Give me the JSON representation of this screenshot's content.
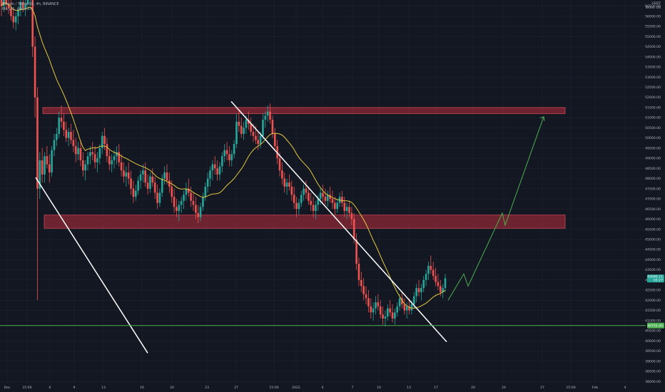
{
  "header": {
    "line1": "Bitcoin / TetherUS, 4h, BINANCE",
    "line2": "MA (21, close, 0)"
  },
  "currency": {
    "code": "USDT",
    "label": "Tether US"
  },
  "colors": {
    "background": "#131722",
    "grid": "#1f2331",
    "up": "#26a69a",
    "down": "#ef5350",
    "ma": "#e2c93f",
    "zone_fill": "#8e2a36",
    "zone_border": "#e04b5a",
    "trendline": "#ffffff",
    "projection": "#4caf50",
    "support": "#4caf50",
    "price_badge": "#26a69a",
    "support_badge": "#4caf50"
  },
  "chart_data": {
    "type": "candlestick",
    "symbol": "Bitcoin / TetherUS",
    "interval": "4h",
    "exchange": "BINANCE",
    "y_ticks": [
      "56500.00",
      "56000.00",
      "55500.00",
      "55000.00",
      "54500.00",
      "54000.00",
      "53500.00",
      "53000.00",
      "52500.00",
      "52000.00",
      "51500.00",
      "51000.00",
      "50500.00",
      "50000.00",
      "49500.00",
      "49000.00",
      "48500.00",
      "48000.00",
      "47500.00",
      "47000.00",
      "46500.00",
      "46000.00",
      "45500.00",
      "45000.00",
      "44500.00",
      "44000.00",
      "43500.00",
      "43000.00",
      "42500.00",
      "42000.00",
      "41500.00",
      "41000.00",
      "40500.00",
      "40000.00",
      "39500.00",
      "39000.00",
      "38500.00",
      "38000.00"
    ],
    "x_ticks": [
      "Dec",
      "15:00",
      "6",
      "9",
      "13",
      "16",
      "20",
      "23",
      "27",
      "15:00",
      "2022",
      "4",
      "7",
      "10",
      "13",
      "17",
      "20",
      "24",
      "27",
      "15:00",
      "Feb",
      "4"
    ],
    "ylim": [
      37900,
      56800
    ],
    "last_price": "43090.21",
    "last_price_sub": "03:27",
    "support_level": "40755.40",
    "zones": [
      {
        "name": "resistance zone",
        "low": 51200,
        "high": 51500
      },
      {
        "name": "support zone",
        "low": 45550,
        "high": 46200
      }
    ],
    "trendline_upper": {
      "from": {
        "x": "27",
        "y": 51800
      },
      "to": {
        "x": "17",
        "y": 39950
      }
    },
    "trendline_lower": {
      "from": {
        "x": "6",
        "y": 48050
      },
      "to": {
        "x": "13",
        "y": 39400
      }
    },
    "projection": [
      {
        "x": "13",
        "y": 42000
      },
      {
        "x": "17",
        "y": 43300
      },
      {
        "x": "17",
        "y": 42700
      },
      {
        "x": "20",
        "y": 46300
      },
      {
        "x": "20",
        "y": 45700
      },
      {
        "x": "24",
        "y": 51050
      }
    ],
    "candles": [
      [
        57000,
        57300,
        56000,
        56500
      ],
      [
        56500,
        57000,
        56200,
        56800
      ],
      [
        56800,
        57200,
        56300,
        56600
      ],
      [
        56600,
        57000,
        56100,
        56400
      ],
      [
        56400,
        56800,
        55800,
        56000
      ],
      [
        56000,
        56400,
        55400,
        55700
      ],
      [
        55700,
        56200,
        55300,
        56000
      ],
      [
        56000,
        56500,
        55600,
        56300
      ],
      [
        56300,
        56900,
        56000,
        56700
      ],
      [
        56700,
        57000,
        56200,
        56400
      ],
      [
        56400,
        56900,
        56000,
        56600
      ],
      [
        56600,
        57100,
        56300,
        56900
      ],
      [
        56900,
        57300,
        56500,
        57000
      ],
      [
        57000,
        57200,
        54000,
        54500
      ],
      [
        54500,
        55000,
        51000,
        52000
      ],
      [
        52000,
        52500,
        42000,
        47500
      ],
      [
        47500,
        49300,
        47000,
        48900
      ],
      [
        48900,
        49500,
        47800,
        48200
      ],
      [
        48200,
        49300,
        47800,
        49100
      ],
      [
        49100,
        49600,
        48500,
        48700
      ],
      [
        48700,
        49200,
        47800,
        48300
      ],
      [
        48300,
        49600,
        48100,
        49400
      ],
      [
        49400,
        50200,
        49100,
        49900
      ],
      [
        49900,
        50500,
        49600,
        50200
      ],
      [
        50200,
        51300,
        50000,
        51000
      ],
      [
        51000,
        51600,
        50500,
        50800
      ],
      [
        50800,
        51200,
        50100,
        50400
      ],
      [
        50400,
        50800,
        49800,
        50000
      ],
      [
        50000,
        50500,
        49600,
        50300
      ],
      [
        50300,
        50700,
        49700,
        49900
      ],
      [
        49900,
        50400,
        49300,
        49600
      ],
      [
        49600,
        50000,
        48800,
        49200
      ],
      [
        49200,
        49800,
        48900,
        49500
      ],
      [
        49500,
        49900,
        48600,
        48900
      ],
      [
        48900,
        49300,
        48100,
        48400
      ],
      [
        48400,
        48900,
        47900,
        48700
      ],
      [
        48700,
        49300,
        48400,
        49100
      ],
      [
        49100,
        49600,
        48700,
        49300
      ],
      [
        49300,
        49800,
        48900,
        49200
      ],
      [
        49200,
        49600,
        48500,
        48800
      ],
      [
        48800,
        49300,
        48300,
        49000
      ],
      [
        49000,
        49700,
        48700,
        49500
      ],
      [
        49500,
        50300,
        49200,
        50100
      ],
      [
        50100,
        50500,
        49400,
        49700
      ],
      [
        49700,
        50000,
        48800,
        49100
      ],
      [
        49100,
        49400,
        48400,
        48700
      ],
      [
        48700,
        49200,
        48300,
        48900
      ],
      [
        48900,
        49400,
        48500,
        49100
      ],
      [
        49100,
        49600,
        48700,
        49300
      ],
      [
        49300,
        49700,
        48600,
        48800
      ],
      [
        48800,
        49200,
        48100,
        48400
      ],
      [
        48400,
        48800,
        47800,
        48100
      ],
      [
        48100,
        48600,
        47600,
        48300
      ],
      [
        48300,
        48800,
        47700,
        48000
      ],
      [
        48000,
        48400,
        47200,
        47500
      ],
      [
        47500,
        47900,
        46800,
        47100
      ],
      [
        47100,
        47700,
        46900,
        47400
      ],
      [
        47400,
        48100,
        47200,
        47900
      ],
      [
        47900,
        48400,
        47500,
        48200
      ],
      [
        48200,
        48700,
        47800,
        48400
      ],
      [
        48400,
        48800,
        47600,
        47800
      ],
      [
        47800,
        48200,
        47200,
        47500
      ],
      [
        47500,
        48300,
        47300,
        48100
      ],
      [
        48100,
        48500,
        47600,
        47800
      ],
      [
        47800,
        48100,
        47000,
        47300
      ],
      [
        47300,
        47700,
        46500,
        46800
      ],
      [
        46800,
        47500,
        46600,
        47300
      ],
      [
        47300,
        48200,
        47100,
        48000
      ],
      [
        48000,
        48600,
        47700,
        48300
      ],
      [
        48300,
        48700,
        47700,
        47900
      ],
      [
        47900,
        48300,
        47300,
        47600
      ],
      [
        47600,
        47900,
        46800,
        47100
      ],
      [
        47100,
        47500,
        46300,
        46600
      ],
      [
        46600,
        47000,
        46100,
        46400
      ],
      [
        46400,
        46900,
        45900,
        46700
      ],
      [
        46700,
        47100,
        46300,
        46900
      ],
      [
        46900,
        47400,
        46500,
        47200
      ],
      [
        47200,
        47800,
        46900,
        47500
      ],
      [
        47500,
        48000,
        47100,
        47300
      ],
      [
        47300,
        47600,
        46600,
        46900
      ],
      [
        46900,
        47300,
        46400,
        46700
      ],
      [
        46700,
        47100,
        46000,
        46300
      ],
      [
        46300,
        46700,
        45800,
        46100
      ],
      [
        46100,
        46800,
        45900,
        46600
      ],
      [
        46600,
        47300,
        46400,
        47100
      ],
      [
        47100,
        47800,
        46900,
        47600
      ],
      [
        47600,
        48300,
        47300,
        48000
      ],
      [
        48000,
        48600,
        47600,
        48400
      ],
      [
        48400,
        48900,
        47900,
        48700
      ],
      [
        48700,
        49100,
        48200,
        48500
      ],
      [
        48500,
        48900,
        47900,
        48200
      ],
      [
        48200,
        48800,
        47900,
        48600
      ],
      [
        48600,
        49300,
        48300,
        49100
      ],
      [
        49100,
        49700,
        48800,
        49400
      ],
      [
        49400,
        49800,
        48900,
        49200
      ],
      [
        49200,
        49600,
        48600,
        48900
      ],
      [
        48900,
        49400,
        48600,
        49200
      ],
      [
        49200,
        49900,
        49000,
        49700
      ],
      [
        49700,
        51200,
        49500,
        50800
      ],
      [
        50800,
        51400,
        50300,
        50600
      ],
      [
        50600,
        51000,
        50000,
        50200
      ],
      [
        50200,
        50800,
        49900,
        50500
      ],
      [
        50500,
        51100,
        50200,
        50900
      ],
      [
        50900,
        51300,
        50400,
        50700
      ],
      [
        50700,
        51000,
        50100,
        50300
      ],
      [
        50300,
        50700,
        49800,
        50100
      ],
      [
        50100,
        50600,
        49700,
        49900
      ],
      [
        49900,
        50300,
        49400,
        49700
      ],
      [
        49700,
        50300,
        49500,
        50100
      ],
      [
        50100,
        51200,
        49900,
        50900
      ],
      [
        50900,
        51300,
        50500,
        51100
      ],
      [
        51100,
        51600,
        50800,
        51300
      ],
      [
        51300,
        51700,
        50700,
        50900
      ],
      [
        50900,
        51100,
        50000,
        50200
      ],
      [
        50200,
        50500,
        49400,
        49600
      ],
      [
        49600,
        49900,
        48700,
        49000
      ],
      [
        49000,
        49300,
        48100,
        48400
      ],
      [
        48400,
        48800,
        47700,
        48000
      ],
      [
        48000,
        48300,
        47300,
        47600
      ],
      [
        47600,
        48000,
        47200,
        47800
      ],
      [
        47800,
        48200,
        47400,
        47600
      ],
      [
        47600,
        47900,
        46900,
        47200
      ],
      [
        47200,
        47600,
        46500,
        46800
      ],
      [
        46800,
        47100,
        46100,
        46500
      ],
      [
        46500,
        47000,
        46200,
        46800
      ],
      [
        46800,
        47400,
        46600,
        47200
      ],
      [
        47200,
        47700,
        46900,
        47500
      ],
      [
        47500,
        47900,
        47000,
        47300
      ],
      [
        47300,
        47600,
        46700,
        46900
      ],
      [
        46900,
        47300,
        46400,
        46700
      ],
      [
        46700,
        47100,
        46100,
        46400
      ],
      [
        46400,
        46900,
        46000,
        46700
      ],
      [
        46700,
        47200,
        46400,
        47000
      ],
      [
        47000,
        47500,
        46700,
        47300
      ],
      [
        47300,
        47700,
        46800,
        47100
      ],
      [
        47100,
        47500,
        46700,
        46900
      ],
      [
        46900,
        47400,
        46600,
        47200
      ],
      [
        47200,
        47600,
        46800,
        47000
      ],
      [
        47000,
        47400,
        46500,
        46800
      ],
      [
        46800,
        47100,
        46200,
        46500
      ],
      [
        46500,
        47000,
        46300,
        46800
      ],
      [
        46800,
        47300,
        46600,
        47100
      ],
      [
        47100,
        47400,
        46600,
        46800
      ],
      [
        46800,
        47100,
        46100,
        46400
      ],
      [
        46400,
        46800,
        46000,
        46600
      ],
      [
        46600,
        46900,
        46100,
        46300
      ],
      [
        46300,
        46600,
        45700,
        46000
      ],
      [
        46000,
        46300,
        44800,
        45000
      ],
      [
        45000,
        45300,
        43500,
        43800
      ],
      [
        43800,
        44100,
        42700,
        43000
      ],
      [
        43000,
        43400,
        42400,
        42700
      ],
      [
        42700,
        43100,
        42000,
        42300
      ],
      [
        42300,
        42700,
        41800,
        42100
      ],
      [
        42100,
        42500,
        41400,
        41700
      ],
      [
        41700,
        42100,
        41100,
        41400
      ],
      [
        41400,
        41900,
        41000,
        41600
      ],
      [
        41600,
        42200,
        41300,
        41900
      ],
      [
        41900,
        42300,
        41500,
        41700
      ],
      [
        41700,
        42000,
        41100,
        41300
      ],
      [
        41300,
        41700,
        40800,
        41100
      ],
      [
        41100,
        41500,
        40700,
        41200
      ],
      [
        41200,
        41800,
        41000,
        41600
      ],
      [
        41600,
        42000,
        41200,
        41400
      ],
      [
        41400,
        41800,
        40900,
        41100
      ],
      [
        41100,
        41600,
        40800,
        41400
      ],
      [
        41400,
        41900,
        41200,
        41700
      ],
      [
        41700,
        42300,
        41500,
        42100
      ],
      [
        42100,
        42400,
        41600,
        41800
      ],
      [
        41800,
        42100,
        41300,
        41500
      ],
      [
        41500,
        41900,
        41100,
        41700
      ],
      [
        41700,
        42100,
        41300,
        41500
      ],
      [
        41500,
        42000,
        41300,
        41800
      ],
      [
        41800,
        42400,
        41600,
        42200
      ],
      [
        42200,
        42800,
        41900,
        42600
      ],
      [
        42600,
        43000,
        42200,
        42400
      ],
      [
        42400,
        42800,
        42000,
        42600
      ],
      [
        42600,
        43200,
        42400,
        43000
      ],
      [
        43000,
        43500,
        42700,
        43300
      ],
      [
        43300,
        43900,
        43000,
        43700
      ],
      [
        43700,
        44200,
        43300,
        43500
      ],
      [
        43500,
        43900,
        43000,
        43200
      ],
      [
        43200,
        43600,
        42700,
        42900
      ],
      [
        42900,
        43300,
        42500,
        42700
      ],
      [
        42700,
        43000,
        42200,
        42400
      ],
      [
        42400,
        42800,
        42100,
        42600
      ],
      [
        42600,
        43300,
        42400,
        43090
      ]
    ]
  }
}
